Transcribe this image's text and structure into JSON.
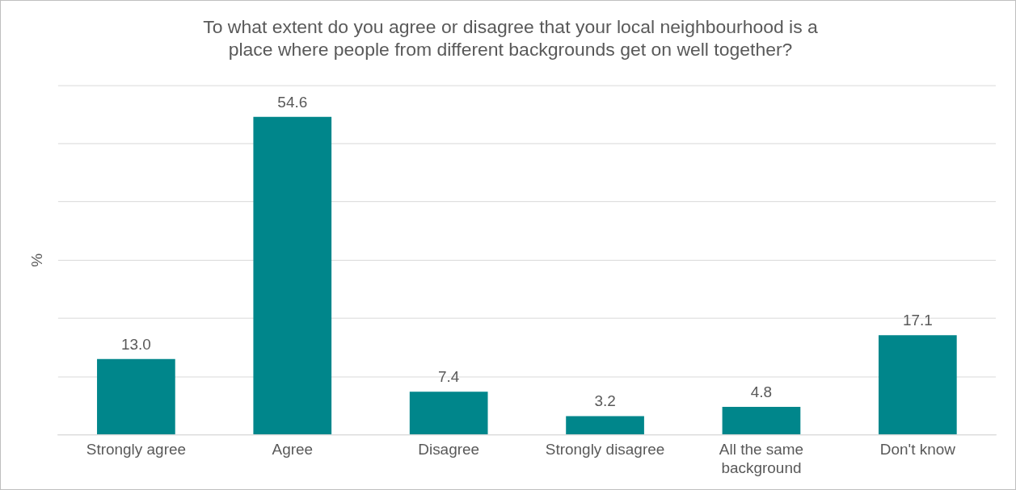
{
  "chart_data": {
    "type": "bar",
    "title": "To what extent do you agree or disagree that your local neighbourhood is a place where people from different backgrounds get on well together?",
    "ylabel": "%",
    "categories": [
      "Strongly agree",
      "Agree",
      "Disagree",
      "Strongly disagree",
      "All the same background",
      "Don't know"
    ],
    "values": [
      13.0,
      54.6,
      7.4,
      3.2,
      4.8,
      17.1
    ],
    "color": "#00868b",
    "ylim": [
      0,
      60
    ],
    "yticks": [
      {
        "value": 0,
        "label": null
      },
      {
        "value": 10,
        "label": null
      },
      {
        "value": 20,
        "label": null
      },
      {
        "value": 30,
        "label": null
      },
      {
        "value": 40,
        "label": null
      },
      {
        "value": 50,
        "label": null
      },
      {
        "value": 60,
        "label": null
      }
    ],
    "value_labels": [
      "13.0",
      "54.6",
      "7.4",
      "3.2",
      "4.8",
      "17.1"
    ],
    "tick_labels": "x",
    "grid": "y",
    "legend": false
  }
}
